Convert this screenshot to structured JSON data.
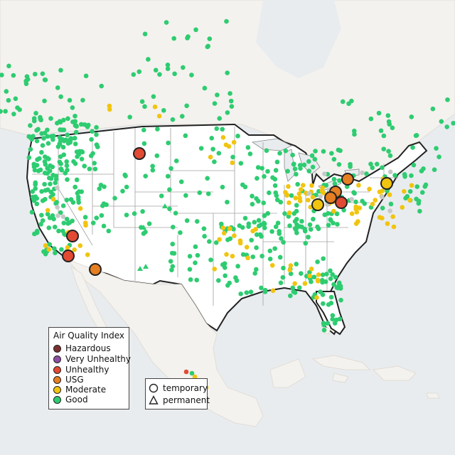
{
  "legend": {
    "title": "Air Quality Index",
    "levels": [
      {
        "label": "Hazardous",
        "color": "#7a3030"
      },
      {
        "label": "Very Unhealthy",
        "color": "#8e4fa3"
      },
      {
        "label": "Unhealthy",
        "color": "#e24a33"
      },
      {
        "label": "USG",
        "color": "#e67e22"
      },
      {
        "label": "Moderate",
        "color": "#f1c40f"
      },
      {
        "label": "Good",
        "color": "#2ecc71"
      }
    ]
  },
  "monitor_types": [
    {
      "label": "temporary",
      "shape": "circle-icon"
    },
    {
      "label": "permanent",
      "shape": "triangle-icon"
    }
  ],
  "colors": {
    "water": "#e8ecef",
    "land": "#f4f2ee",
    "usa_fill": "#ffffff",
    "border": "#222222",
    "state_lines": "#a0a0a0",
    "inactive": "#c8c8c8"
  }
}
